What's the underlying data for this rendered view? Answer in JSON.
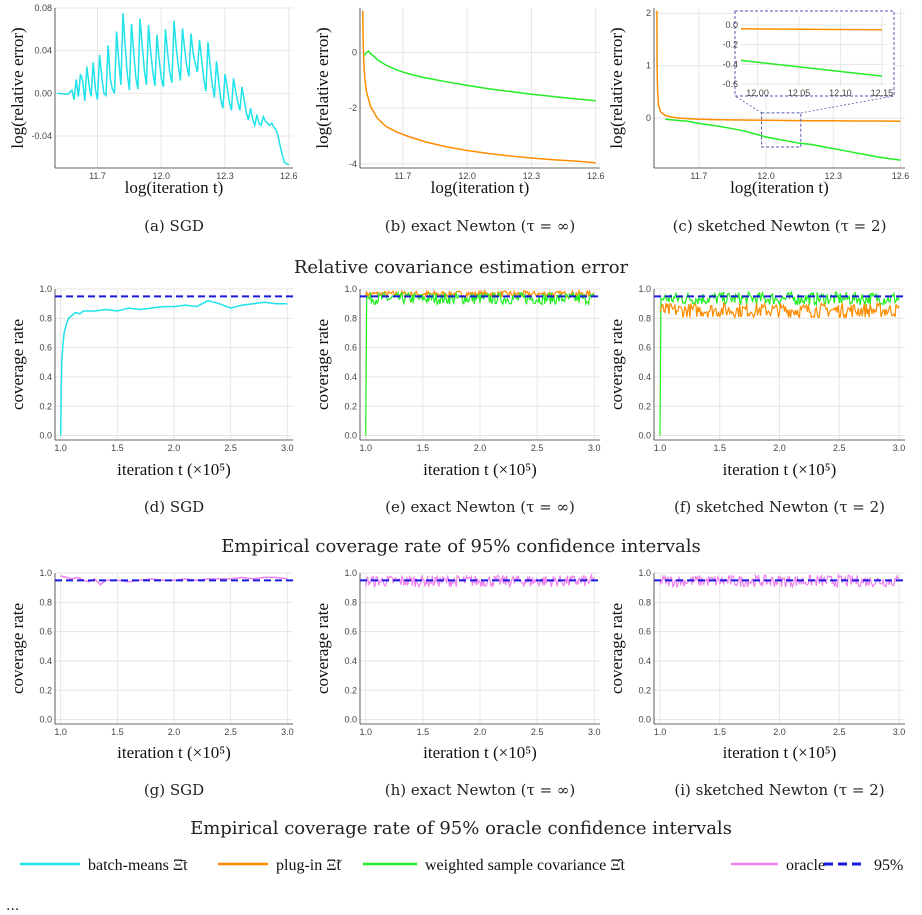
{
  "colors": {
    "batch": "#1ee3ea",
    "plugin": "#ff8c00",
    "weighted": "#22ee22",
    "oracle": "#ee82ee",
    "ref": "#1a1adf",
    "grid": "#e6e6e6",
    "inset": "#5a5ab0"
  },
  "row_titles": [
    "Relative covariance estimation error",
    "Empirical coverage rate of 95% confidence intervals",
    "Empirical coverage rate of 95% oracle confidence intervals"
  ],
  "legend": [
    {
      "label": "batch-means Ξ̄t",
      "color": "#1ee3ea",
      "dash": false
    },
    {
      "label": "plug-in Ξ̃t",
      "color": "#ff8c00",
      "dash": false
    },
    {
      "label": "weighted sample covariance Ξ̂t",
      "color": "#22ee22",
      "dash": false
    },
    {
      "label": "oracle",
      "color": "#ee82ee",
      "dash": false
    },
    {
      "label": "95%",
      "color": "#1a1adf",
      "dash": true
    }
  ],
  "footer": "...",
  "chart_data": [
    {
      "id": "a",
      "type": "line",
      "caption": "(a) SGD",
      "xlabel": "log(iteration t)",
      "ylabel": "log(relative error)",
      "xlim": [
        11.5,
        12.62
      ],
      "ylim": [
        -0.07,
        0.08
      ],
      "xticks": [
        11.7,
        12.0,
        12.3,
        12.6
      ],
      "yticks": [
        0.08,
        0.04,
        0.0,
        -0.04
      ],
      "ytick_labels": [
        "0.08",
        "0.04",
        "0.00",
        "-0.04"
      ],
      "xtick_labels": [
        "11.7",
        "12.0",
        "12.3",
        "12.6"
      ],
      "series": [
        {
          "color_key": "batch",
          "x": [
            11.51,
            11.56,
            11.58,
            11.59,
            11.6,
            11.61,
            11.62,
            11.63,
            11.64,
            11.65,
            11.66,
            11.67,
            11.68,
            11.69,
            11.7,
            11.71,
            11.72,
            11.73,
            11.74,
            11.75,
            11.76,
            11.77,
            11.78,
            11.79,
            11.8,
            11.81,
            11.82,
            11.83,
            11.84,
            11.85,
            11.86,
            11.87,
            11.88,
            11.89,
            11.9,
            11.91,
            11.92,
            11.93,
            11.94,
            11.95,
            11.96,
            11.97,
            11.98,
            11.99,
            12.0,
            12.01,
            12.02,
            12.03,
            12.04,
            12.05,
            12.06,
            12.07,
            12.08,
            12.09,
            12.1,
            12.11,
            12.12,
            12.13,
            12.14,
            12.15,
            12.16,
            12.17,
            12.18,
            12.19,
            12.2,
            12.21,
            12.22,
            12.23,
            12.24,
            12.25,
            12.26,
            12.27,
            12.28,
            12.29,
            12.3,
            12.31,
            12.32,
            12.33,
            12.34,
            12.35,
            12.36,
            12.37,
            12.38,
            12.39,
            12.4,
            12.41,
            12.42,
            12.43,
            12.44,
            12.45,
            12.46,
            12.47,
            12.48,
            12.49,
            12.5,
            12.51,
            12.52,
            12.53,
            12.54,
            12.55,
            12.56,
            12.57,
            12.58,
            12.59,
            12.6
          ],
          "y": [
            0.0,
            -0.001,
            0.003,
            -0.006,
            0.013,
            -0.003,
            0.018,
            0.012,
            -0.007,
            0.025,
            0.008,
            -0.003,
            0.029,
            0.004,
            -0.006,
            0.036,
            0.015,
            0.0,
            -0.002,
            0.045,
            0.014,
            0.004,
            0.0,
            0.058,
            0.03,
            0.008,
            0.075,
            0.046,
            0.018,
            0.003,
            0.065,
            0.04,
            0.015,
            0.004,
            0.07,
            0.046,
            0.022,
            0.008,
            0.064,
            0.04,
            0.02,
            0.007,
            0.055,
            0.032,
            0.014,
            0.006,
            0.06,
            0.038,
            0.02,
            0.01,
            0.068,
            0.044,
            0.026,
            0.012,
            0.061,
            0.042,
            0.026,
            0.016,
            0.056,
            0.038,
            0.028,
            0.02,
            0.05,
            0.032,
            0.014,
            0.002,
            0.048,
            0.026,
            0.008,
            -0.004,
            0.03,
            0.012,
            -0.006,
            -0.014,
            0.018,
            0.006,
            -0.008,
            -0.016,
            0.014,
            0.002,
            -0.008,
            -0.016,
            0.006,
            -0.006,
            -0.018,
            -0.025,
            -0.014,
            -0.024,
            -0.03,
            -0.02,
            -0.028,
            -0.03,
            -0.022,
            -0.026,
            -0.028,
            -0.03,
            -0.028,
            -0.032,
            -0.034,
            -0.04,
            -0.05,
            -0.058,
            -0.065,
            -0.066,
            -0.067
          ]
        }
      ]
    },
    {
      "id": "b",
      "type": "line",
      "caption": "(b) exact Newton (τ = ∞)",
      "xlabel": "log(iteration t)",
      "ylabel": "log(relative error)",
      "xlim": [
        11.5,
        12.62
      ],
      "ylim": [
        -4.15,
        1.6
      ],
      "xticks": [
        11.7,
        12.0,
        12.3,
        12.6
      ],
      "yticks": [
        0,
        -2,
        -4
      ],
      "ytick_labels": [
        "0",
        "-2",
        "-4"
      ],
      "xtick_labels": [
        "11.7",
        "12.0",
        "12.3",
        "12.6"
      ],
      "series": [
        {
          "color_key": "plugin",
          "x": [
            11.513,
            11.514,
            11.517,
            11.522,
            11.53,
            11.55,
            11.58,
            11.62,
            11.67,
            11.72,
            11.8,
            11.9,
            12.0,
            12.1,
            12.2,
            12.3,
            12.4,
            12.5,
            12.6
          ],
          "y": [
            1.5,
            0.7,
            -0.2,
            -0.9,
            -1.4,
            -1.95,
            -2.35,
            -2.65,
            -2.85,
            -3.0,
            -3.2,
            -3.38,
            -3.52,
            -3.63,
            -3.72,
            -3.79,
            -3.85,
            -3.9,
            -3.96
          ]
        },
        {
          "color_key": "weighted",
          "x": [
            11.52,
            11.53,
            11.54,
            11.55,
            11.56,
            11.58,
            11.62,
            11.67,
            11.72,
            11.8,
            11.9,
            12.0,
            12.1,
            12.2,
            12.3,
            12.4,
            12.5,
            12.6
          ],
          "y": [
            -0.1,
            0.0,
            0.05,
            -0.05,
            -0.1,
            -0.25,
            -0.45,
            -0.62,
            -0.75,
            -0.9,
            -1.05,
            -1.18,
            -1.3,
            -1.4,
            -1.5,
            -1.58,
            -1.66,
            -1.73
          ]
        }
      ]
    },
    {
      "id": "c",
      "type": "line",
      "caption": "(c) sketched Newton (τ = 2)",
      "xlabel": "log(iteration t)",
      "ylabel": "log(relative error)",
      "xlim": [
        11.5,
        12.62
      ],
      "ylim": [
        -0.95,
        2.1
      ],
      "xticks": [
        11.7,
        12.0,
        12.3,
        12.6
      ],
      "yticks": [
        2,
        1,
        0
      ],
      "ytick_labels": [
        "2",
        "1",
        "0"
      ],
      "xtick_labels": [
        "11.7",
        "12.0",
        "12.3",
        "12.6"
      ],
      "series": [
        {
          "color_key": "plugin",
          "x": [
            11.513,
            11.514,
            11.516,
            11.52,
            11.53,
            11.55,
            11.58,
            11.62,
            11.7,
            11.8,
            11.9,
            12.0,
            12.1,
            12.2,
            12.3,
            12.4,
            12.5,
            12.6
          ],
          "y": [
            2.05,
            1.0,
            0.5,
            0.25,
            0.12,
            0.05,
            0.02,
            0.0,
            -0.02,
            -0.03,
            -0.035,
            -0.04,
            -0.045,
            -0.05,
            -0.05,
            -0.055,
            -0.055,
            -0.06
          ]
        },
        {
          "color_key": "weighted",
          "x": [
            11.55,
            11.6,
            11.65,
            11.7,
            11.75,
            11.8,
            11.85,
            11.9,
            11.95,
            12.0,
            12.05,
            12.1,
            12.15,
            12.2,
            12.25,
            12.3,
            12.35,
            12.4,
            12.45,
            12.5,
            12.55,
            12.6
          ],
          "y": [
            -0.02,
            -0.04,
            -0.06,
            -0.1,
            -0.13,
            -0.16,
            -0.2,
            -0.24,
            -0.3,
            -0.36,
            -0.4,
            -0.44,
            -0.48,
            -0.5,
            -0.54,
            -0.58,
            -0.62,
            -0.66,
            -0.7,
            -0.74,
            -0.77,
            -0.8
          ]
        }
      ],
      "inset": {
        "xlim": [
          11.98,
          12.155
        ],
        "ylim": [
          -0.62,
          0.08
        ],
        "xticks": [
          12.0,
          12.05,
          12.1,
          12.15
        ],
        "xtick_labels": [
          "12.00",
          "12.05",
          "12.10",
          "12.15"
        ],
        "yticks": [
          0.0,
          -0.2,
          -0.4,
          -0.6
        ],
        "ytick_labels": [
          "0.0",
          "-0.2",
          "-0.4",
          "-0.6"
        ],
        "series": [
          {
            "color_key": "plugin",
            "x": [
              11.98,
              12.15
            ],
            "y": [
              -0.04,
              -0.05
            ]
          },
          {
            "color_key": "weighted",
            "x": [
              11.98,
              12.15
            ],
            "y": [
              -0.36,
              -0.52
            ]
          }
        ]
      }
    },
    {
      "id": "d",
      "type": "line",
      "caption": "(d) SGD",
      "xlabel": "iteration t (×10⁵)",
      "ylabel": "coverage rate",
      "xlim": [
        0.95,
        3.05
      ],
      "ylim": [
        -0.03,
        1.0
      ],
      "xticks": [
        1.0,
        1.5,
        2.0,
        2.5,
        3.0
      ],
      "yticks": [
        0.0,
        0.2,
        0.4,
        0.6,
        0.8,
        1.0
      ],
      "ytick_labels": [
        "0.0",
        "0.2",
        "0.4",
        "0.6",
        "0.8",
        "1.0"
      ],
      "xtick_labels": [
        "1.0",
        "1.5",
        "2.0",
        "2.5",
        "3.0"
      ],
      "ref": 0.95,
      "mode": "smooth",
      "series": [
        {
          "color_key": "batch",
          "x": [
            1.0,
            1.005,
            1.01,
            1.02,
            1.03,
            1.05,
            1.07,
            1.1,
            1.13,
            1.17,
            1.2,
            1.3,
            1.4,
            1.5,
            1.6,
            1.7,
            1.8,
            1.9,
            2.0,
            2.1,
            2.2,
            2.3,
            2.4,
            2.5,
            2.6,
            2.7,
            2.8,
            2.9,
            3.0
          ],
          "y": [
            0.0,
            0.3,
            0.5,
            0.62,
            0.7,
            0.76,
            0.8,
            0.82,
            0.84,
            0.83,
            0.85,
            0.85,
            0.86,
            0.85,
            0.87,
            0.86,
            0.87,
            0.88,
            0.88,
            0.89,
            0.88,
            0.92,
            0.9,
            0.87,
            0.89,
            0.9,
            0.91,
            0.9,
            0.9
          ]
        }
      ]
    },
    {
      "id": "e",
      "type": "line",
      "caption": "(e) exact Newton (τ = ∞)",
      "xlabel": "iteration t (×10⁵)",
      "ylabel": "coverage rate",
      "xlim": [
        0.95,
        3.05
      ],
      "ylim": [
        -0.03,
        1.0
      ],
      "xticks": [
        1.0,
        1.5,
        2.0,
        2.5,
        3.0
      ],
      "yticks": [
        0.0,
        0.2,
        0.4,
        0.6,
        0.8,
        1.0
      ],
      "ytick_labels": [
        "0.0",
        "0.2",
        "0.4",
        "0.6",
        "0.8",
        "1.0"
      ],
      "xtick_labels": [
        "1.0",
        "1.5",
        "2.0",
        "2.5",
        "3.0"
      ],
      "ref": 0.95,
      "mode": "noisy",
      "series": [
        {
          "color_key": "plugin",
          "center": 0.965,
          "amp": 0.022
        },
        {
          "color_key": "weighted",
          "center": 0.935,
          "amp": 0.04,
          "start_drop": true
        }
      ]
    },
    {
      "id": "f",
      "type": "line",
      "caption": "(f) sketched Newton (τ = 2)",
      "xlabel": "iteration t (×10⁵)",
      "ylabel": "coverage rate",
      "xlim": [
        0.95,
        3.05
      ],
      "ylim": [
        -0.03,
        1.0
      ],
      "xticks": [
        1.0,
        1.5,
        2.0,
        2.5,
        3.0
      ],
      "yticks": [
        0.0,
        0.2,
        0.4,
        0.6,
        0.8,
        1.0
      ],
      "ytick_labels": [
        "0.0",
        "0.2",
        "0.4",
        "0.6",
        "0.8",
        "1.0"
      ],
      "xtick_labels": [
        "1.0",
        "1.5",
        "2.0",
        "2.5",
        "3.0"
      ],
      "ref": 0.95,
      "mode": "noisy",
      "series": [
        {
          "color_key": "weighted",
          "center": 0.935,
          "amp": 0.045,
          "start_drop": true
        },
        {
          "color_key": "plugin",
          "center": 0.855,
          "amp": 0.05
        }
      ]
    },
    {
      "id": "g",
      "type": "line",
      "caption": "(g) SGD",
      "xlabel": "iteration t (×10⁵)",
      "ylabel": "coverage rate",
      "xlim": [
        0.95,
        3.05
      ],
      "ylim": [
        -0.03,
        1.0
      ],
      "xticks": [
        1.0,
        1.5,
        2.0,
        2.5,
        3.0
      ],
      "yticks": [
        0.0,
        0.2,
        0.4,
        0.6,
        0.8,
        1.0
      ],
      "ytick_labels": [
        "0.0",
        "0.2",
        "0.4",
        "0.6",
        "0.8",
        "1.0"
      ],
      "xtick_labels": [
        "1.0",
        "1.5",
        "2.0",
        "2.5",
        "3.0"
      ],
      "ref": 0.95,
      "mode": "smooth",
      "series": [
        {
          "color_key": "oracle",
          "x": [
            1.0,
            1.05,
            1.1,
            1.15,
            1.2,
            1.25,
            1.3,
            1.35,
            1.4,
            1.5,
            1.6,
            1.7,
            1.8,
            1.9,
            2.0,
            2.1,
            2.2,
            2.3,
            2.4,
            2.5,
            2.6,
            2.7,
            2.8,
            2.9,
            3.0
          ],
          "y": [
            0.98,
            0.97,
            0.96,
            0.97,
            0.95,
            0.94,
            0.96,
            0.92,
            0.95,
            0.95,
            0.94,
            0.95,
            0.96,
            0.95,
            0.95,
            0.96,
            0.95,
            0.96,
            0.96,
            0.96,
            0.97,
            0.96,
            0.97,
            0.97,
            0.96
          ]
        }
      ]
    },
    {
      "id": "h",
      "type": "line",
      "caption": "(h) exact Newton (τ = ∞)",
      "xlabel": "iteration t (×10⁵)",
      "ylabel": "coverage rate",
      "xlim": [
        0.95,
        3.05
      ],
      "ylim": [
        -0.03,
        1.0
      ],
      "xticks": [
        1.0,
        1.5,
        2.0,
        2.5,
        3.0
      ],
      "yticks": [
        0.0,
        0.2,
        0.4,
        0.6,
        0.8,
        1.0
      ],
      "ytick_labels": [
        "0.0",
        "0.2",
        "0.4",
        "0.6",
        "0.8",
        "1.0"
      ],
      "xtick_labels": [
        "1.0",
        "1.5",
        "2.0",
        "2.5",
        "3.0"
      ],
      "ref": 0.95,
      "mode": "noisy",
      "series": [
        {
          "color_key": "oracle",
          "center": 0.945,
          "amp": 0.04
        }
      ]
    },
    {
      "id": "i",
      "type": "line",
      "caption": "(i) sketched Newton (τ = 2)",
      "xlabel": "iteration t (×10⁵)",
      "ylabel": "coverage rate",
      "xlim": [
        0.95,
        3.05
      ],
      "ylim": [
        -0.03,
        1.0
      ],
      "xticks": [
        1.0,
        1.5,
        2.0,
        2.5,
        3.0
      ],
      "yticks": [
        0.0,
        0.2,
        0.4,
        0.6,
        0.8,
        1.0
      ],
      "ytick_labels": [
        "0.0",
        "0.2",
        "0.4",
        "0.6",
        "0.8",
        "1.0"
      ],
      "xtick_labels": [
        "1.0",
        "1.5",
        "2.0",
        "2.5",
        "3.0"
      ],
      "ref": 0.95,
      "mode": "noisy",
      "series": [
        {
          "color_key": "oracle",
          "center": 0.945,
          "amp": 0.04
        }
      ]
    }
  ]
}
